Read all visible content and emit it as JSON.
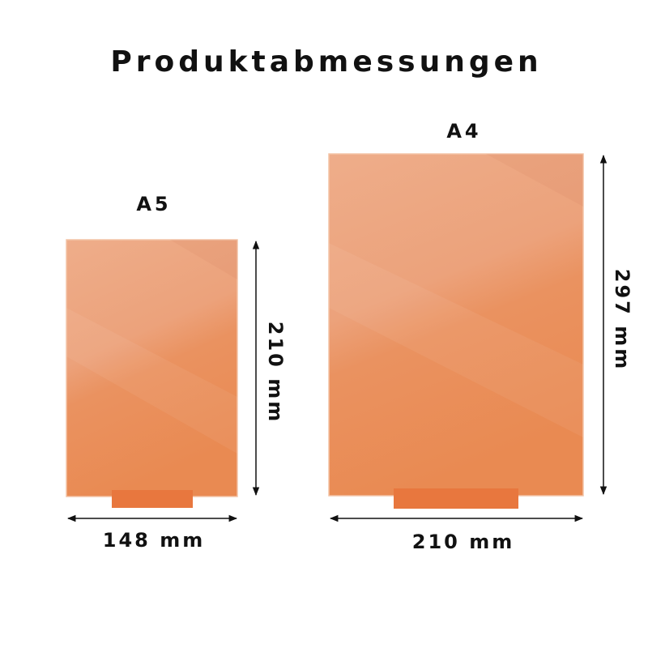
{
  "title": "Produktabmessungen",
  "panels": [
    {
      "size_label": "A5",
      "width_label": "148 mm",
      "height_label": "210 mm"
    },
    {
      "size_label": "A4",
      "width_label": "210 mm",
      "height_label": "297 mm"
    }
  ],
  "colors": {
    "panel_light": "#EEAC88",
    "panel_dark": "#E9874F",
    "stand": "#E8773E",
    "arrow": "#111111"
  }
}
